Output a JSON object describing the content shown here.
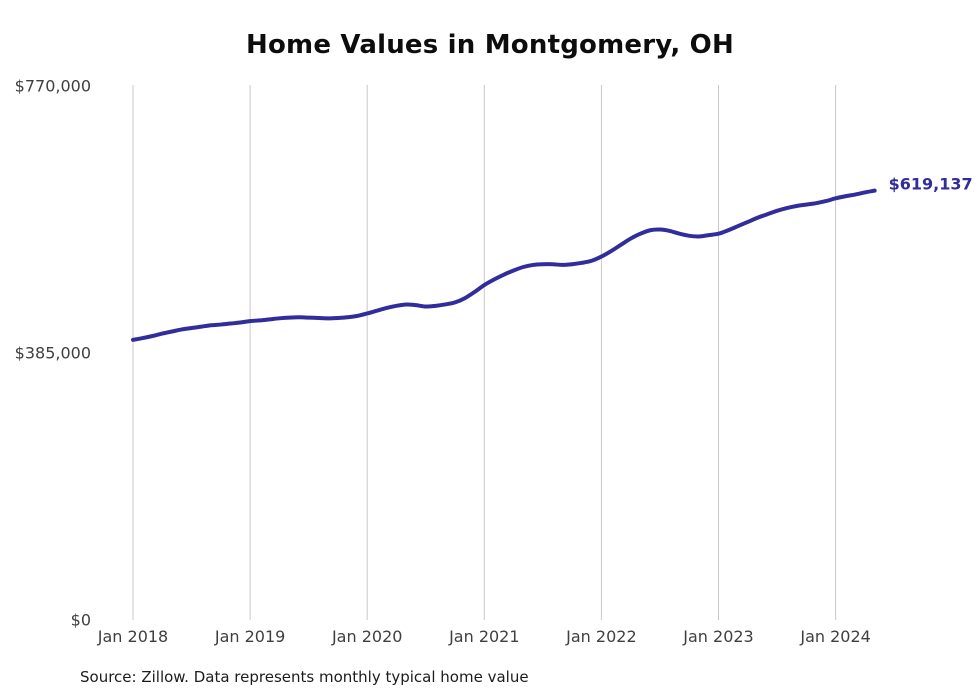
{
  "chart_data": {
    "type": "line",
    "title": "Home Values in Montgomery, OH",
    "source_note": "Source: Zillow. Data represents monthly typical home value",
    "end_label": "$619,137",
    "end_value": 619137,
    "line_color": "#312e9b",
    "grid_color": "#c9c9c9",
    "ylim": [
      0,
      770000
    ],
    "y_ticks": [
      {
        "label": "$770,000",
        "value": 770000
      },
      {
        "label": "$385,000",
        "value": 385000
      },
      {
        "label": "$0",
        "value": 0
      }
    ],
    "x_tick_labels": [
      "Jan 2018",
      "Jan 2019",
      "Jan 2020",
      "Jan 2021",
      "Jan 2022",
      "Jan 2023",
      "Jan 2024"
    ],
    "x_first_month": "2018-01",
    "x_interval": "month",
    "legend": "none",
    "grid": "vertical-only",
    "values": [
      404000,
      406500,
      409500,
      413000,
      416000,
      419000,
      421000,
      423000,
      425000,
      426000,
      427500,
      429000,
      431000,
      432000,
      433500,
      435000,
      436000,
      436500,
      436000,
      435500,
      435000,
      435500,
      436500,
      438500,
      442000,
      446000,
      450000,
      453000,
      455000,
      454000,
      452000,
      453000,
      455000,
      458000,
      464000,
      473000,
      483000,
      491000,
      498000,
      504000,
      509000,
      512000,
      513000,
      513000,
      512000,
      513000,
      515000,
      518000,
      524000,
      532000,
      541000,
      550000,
      557000,
      562000,
      563000,
      561000,
      557000,
      554000,
      553000,
      555000,
      557000,
      562000,
      568000,
      574000,
      580000,
      585000,
      590000,
      594000,
      597000,
      599000,
      601000,
      604000,
      608000,
      611000,
      613500,
      616500,
      619137
    ]
  }
}
